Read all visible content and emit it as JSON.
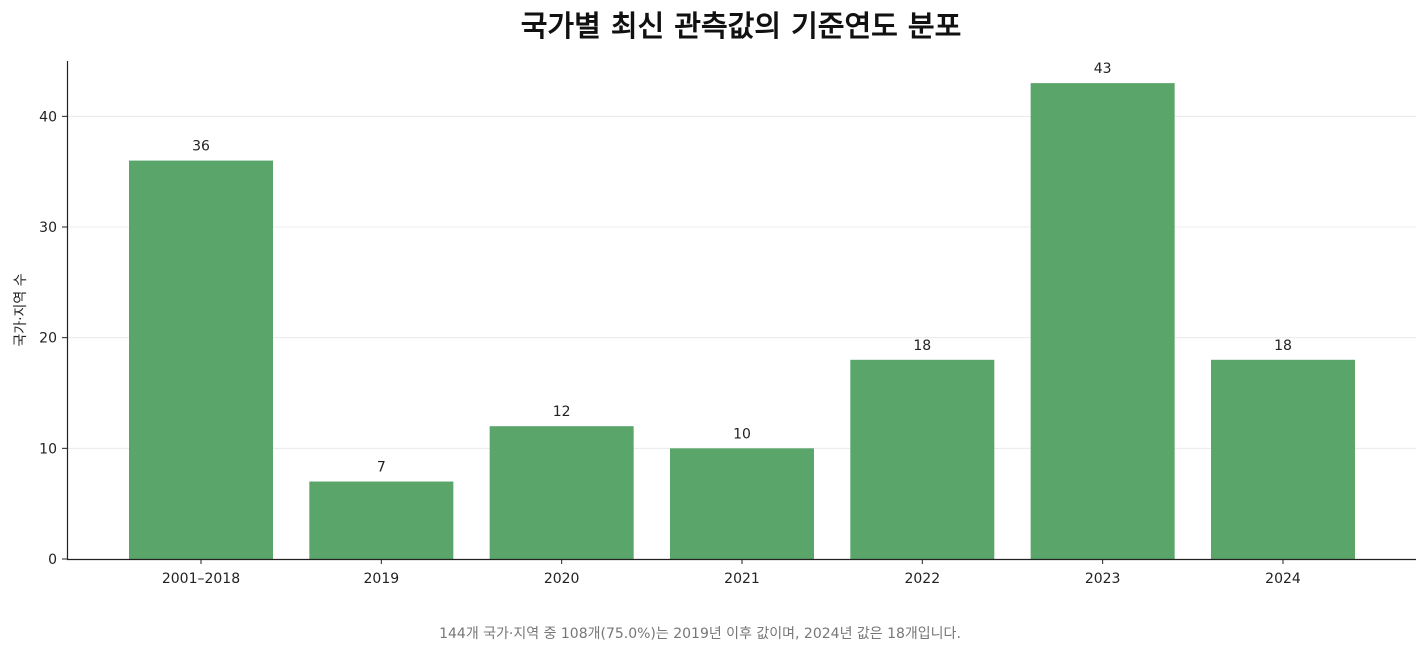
{
  "chart_data": {
    "type": "bar",
    "title": "국가별 최신 관측값의 기준연도 분포",
    "xlabel": "",
    "ylabel": "국가·지역 수",
    "categories": [
      "2001–2018",
      "2019",
      "2020",
      "2021",
      "2022",
      "2023",
      "2024"
    ],
    "values": [
      36,
      7,
      12,
      10,
      18,
      43,
      18
    ],
    "ylim": [
      0,
      45
    ],
    "yticks": [
      0,
      10,
      20,
      30,
      40
    ],
    "grid": "horizontal",
    "bar_color": "#5aa56a",
    "data_labels": true
  },
  "footnote": "144개 국가·지역 중 108개(75.0%)는 2019년 이후 값이며, 2024년 값은 18개입니다."
}
